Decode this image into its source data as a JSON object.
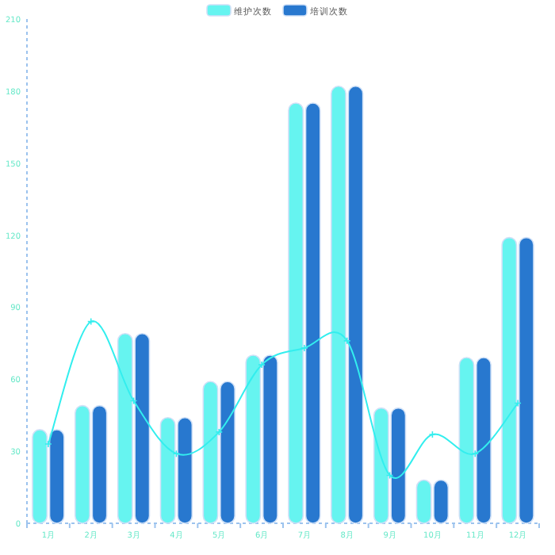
{
  "chart_data": {
    "type": "bar",
    "categories": [
      "1月",
      "2月",
      "3月",
      "4月",
      "5月",
      "6月",
      "7月",
      "8月",
      "9月",
      "10月",
      "11月",
      "12月"
    ],
    "series": [
      {
        "name": "维护次数",
        "color": "#66f4f0",
        "values": [
          39,
          49,
          79,
          44,
          59,
          70,
          175,
          182,
          48,
          18,
          69,
          119
        ]
      },
      {
        "name": "培训次数",
        "color": "#2878cf",
        "values": [
          39,
          49,
          79,
          44,
          59,
          70,
          175,
          182,
          48,
          18,
          69,
          119
        ]
      },
      {
        "type": "line",
        "color": "#33eeee",
        "values": [
          33,
          84,
          51,
          29,
          38,
          66,
          73,
          76,
          20,
          37,
          29,
          50
        ]
      }
    ],
    "ylim": [
      0,
      210
    ],
    "yticks": [
      0,
      30,
      60,
      90,
      120,
      150,
      180,
      210
    ],
    "legend": "top",
    "grid": false,
    "marker": "cross",
    "line_style": "solid"
  }
}
